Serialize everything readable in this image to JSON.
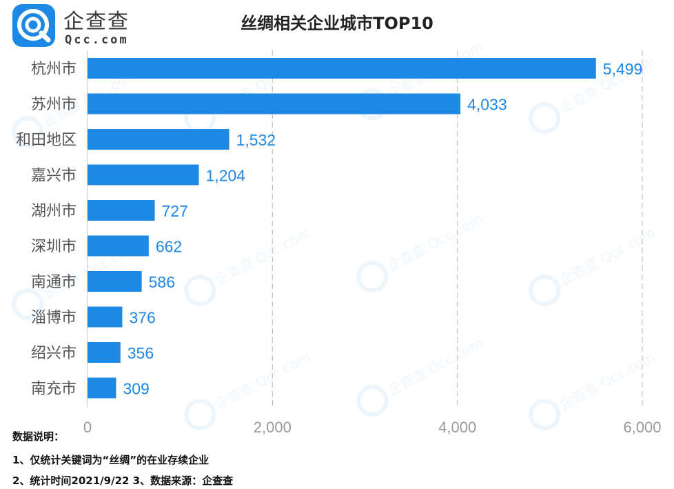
{
  "logo": {
    "name": "企查查",
    "domain": "Qcc.com",
    "icon": "qcc-logo-icon",
    "brand_color": "#1e88e5"
  },
  "watermark_text": "企查查 Qcc.com",
  "chart_data": {
    "type": "bar",
    "orientation": "horizontal",
    "title": "丝绸相关企业城市TOP10",
    "categories": [
      "杭州市",
      "苏州市",
      "和田地区",
      "嘉兴市",
      "湖州市",
      "深圳市",
      "南通市",
      "淄博市",
      "绍兴市",
      "南充市"
    ],
    "values": [
      5499,
      4033,
      1532,
      1204,
      727,
      662,
      586,
      376,
      356,
      309
    ],
    "value_labels": [
      "5,499",
      "4,033",
      "1,532",
      "1,204",
      "727",
      "662",
      "586",
      "376",
      "356",
      "309"
    ],
    "xlim": [
      0,
      6000
    ],
    "ticks": [
      0,
      2000,
      4000,
      6000
    ],
    "tick_labels": [
      "0",
      "2,000",
      "4,000",
      "6,000"
    ],
    "bar_color": "#1e88e5",
    "label_color": "#1e88e5",
    "grid": "vertical dashed"
  },
  "notes": {
    "heading": "数据说明：",
    "line1": "1、仅统计关键词为“丝绸”的在业存续企业",
    "line2": "2、统计时间2021/9/22   3、数据来源：企查查"
  }
}
